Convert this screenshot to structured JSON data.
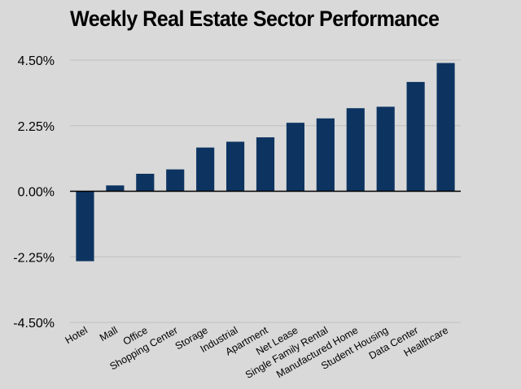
{
  "chart_data": {
    "type": "bar",
    "title": "Weekly Real Estate Sector Performance",
    "xlabel": "",
    "ylabel": "",
    "categories": [
      "Hotel",
      "Mall",
      "Office",
      "Shopping Center",
      "Storage",
      "Industrial",
      "Apartment",
      "Net Lease",
      "Single Family Rental",
      "Manufactured Home",
      "Student Housing",
      "Data Center",
      "Healthcare"
    ],
    "values": [
      -2.4,
      0.2,
      0.6,
      0.75,
      1.5,
      1.7,
      1.85,
      2.35,
      2.5,
      2.85,
      2.9,
      3.75,
      4.4
    ],
    "y_ticks": [
      4.5,
      2.25,
      0.0,
      -2.25,
      -4.5
    ],
    "y_tick_labels": [
      "4.50%",
      "2.25%",
      "0.00%",
      "-2.25%",
      "-4.50%"
    ],
    "ylim": [
      -4.5,
      4.5
    ],
    "grid": true,
    "legend": "none",
    "colors": {
      "bar": "#0d3461",
      "grid": "#bfbfbf",
      "zero_line": "#000000",
      "background": "#d9d9d9"
    }
  }
}
